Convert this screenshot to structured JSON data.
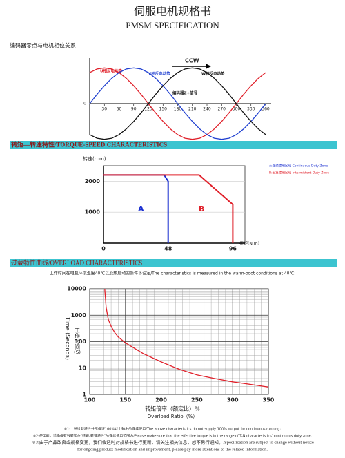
{
  "header": {
    "title": "伺服电机规格书",
    "subtitle": "PMSM SPECIFICATION"
  },
  "chart_data": [
    {
      "type": "line",
      "title": "编码器零点与电机相位关系",
      "x": [
        0,
        15,
        30,
        45,
        60,
        75,
        90,
        105,
        120,
        135,
        150,
        165,
        180,
        195,
        210,
        225,
        240,
        255,
        270,
        285,
        300,
        315,
        330,
        345,
        360
      ],
      "xlim": [
        0,
        360
      ],
      "xticks": [
        30,
        60,
        90,
        120,
        150,
        180,
        210,
        240,
        270,
        300,
        330,
        360
      ],
      "ylim": [
        -1.2,
        1.2
      ],
      "yticks": [
        0
      ],
      "series": [
        {
          "name": "U相反电动势",
          "color": "#e0202a",
          "values": [
            0.87,
            0.97,
            1,
            0.97,
            0.87,
            0.71,
            0.5,
            0.26,
            0,
            -0.26,
            -0.5,
            -0.71,
            -0.87,
            -0.97,
            -1,
            -0.97,
            -0.87,
            -0.71,
            -0.5,
            -0.26,
            0,
            0.26,
            0.5,
            0.71,
            0.87
          ]
        },
        {
          "name": "V相反电动势",
          "color": "#2040d0",
          "values": [
            0,
            0.26,
            0.5,
            0.71,
            0.87,
            0.97,
            1,
            0.97,
            0.87,
            0.71,
            0.5,
            0.26,
            0,
            -0.26,
            -0.5,
            -0.71,
            -0.87,
            -0.97,
            -1,
            -0.97,
            -0.87,
            -0.71,
            -0.5,
            -0.26,
            0
          ]
        },
        {
          "name": "W相反电动势",
          "color": "#111111",
          "values": [
            -0.87,
            -0.97,
            -1,
            -0.97,
            -0.87,
            -0.71,
            -0.5,
            -0.26,
            0,
            0.26,
            0.5,
            0.71,
            0.87,
            0.97,
            1,
            0.97,
            0.87,
            0.71,
            0.5,
            0.26,
            0,
            -0.26,
            -0.5,
            -0.71,
            -0.87
          ]
        }
      ],
      "annotations": [
        "CCW",
        "编码器Z+信号"
      ]
    },
    {
      "type": "line",
      "title": "转矩—转速特性/TORQUE-SPEED  CHARACTERISTICS",
      "y_label": "转速(rpm)",
      "x_label": "扭矩(N.m)",
      "xlim": [
        0,
        105
      ],
      "xticks": [
        0,
        48,
        96
      ],
      "ylim": [
        0,
        2500
      ],
      "yticks": [
        1000,
        2000
      ],
      "grid": true,
      "series": [
        {
          "name": "A:连续使用区域 Continuous Duty Zone",
          "color": "#1a2fd0",
          "x": [
            0,
            45,
            48,
            48
          ],
          "values": [
            2200,
            2200,
            2000,
            0
          ]
        },
        {
          "name": "B:反复使用区域 Intermittent Duty Zone",
          "color": "#e0202a",
          "x": [
            0,
            71,
            96,
            96
          ],
          "values": [
            2200,
            2200,
            1250,
            0
          ]
        }
      ],
      "annotations": [
        "A",
        "B"
      ]
    },
    {
      "type": "line",
      "title": "过载特性曲线/OVERLOAD   CHARACTERISTICS",
      "subtitle": "工作时间在电机环境温度40℃以及热启动的条件下设定/The characteristics is measured in the warm-boot conditions at 40℃:",
      "y_label": [
        "工作时间",
        "Time (Seconds)",
        "(S)"
      ],
      "x_label": [
        "转矩倍率（额定比）%",
        "Overload Ratio（%）"
      ],
      "log_y": true,
      "grid": true,
      "color": "#e0202a",
      "x": [
        121,
        123,
        126,
        130,
        135,
        140,
        150,
        175,
        200,
        225,
        250,
        275,
        300,
        325,
        350
      ],
      "values": [
        10000,
        2000,
        700,
        380,
        220,
        150,
        90,
        35,
        17,
        9,
        5.5,
        4,
        3,
        2.4,
        1.9
      ],
      "xlim": [
        100,
        350
      ],
      "xticks": [
        100,
        150,
        200,
        250,
        300,
        350
      ],
      "ylim": [
        1,
        10000
      ],
      "yticks": [
        1,
        10,
        100,
        1000,
        10000
      ]
    }
  ],
  "footnotes": [
    "※1:上述过载特性并不保证100%以上输出的连续使用/The above characteristics do not supply 100% output for continuous running;",
    "※2:使用时，请确保有效转矩在\"转矩-转速特性\"的连续使用范围内/Please make sure that the effective torque is in the range of T-N characteristics' continuous duty zone.",
    "※3:由于产品改良或规格变更，我们会适时对规格书进行更新，请关注相关信息，恕不另行通知。/Specification are subject to change without notice",
    "for ongoing product modification and improvement, please pay more attentions to the related information."
  ]
}
